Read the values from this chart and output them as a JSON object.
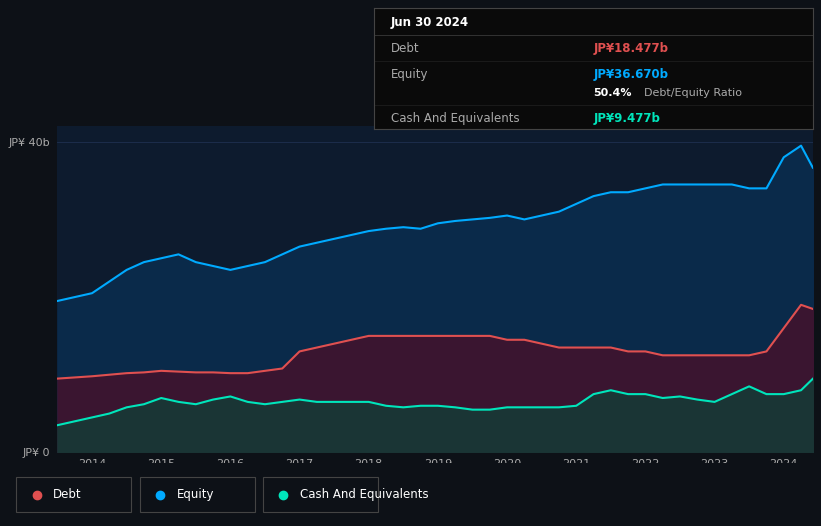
{
  "bg_color": "#0d1117",
  "plot_bg_color": "#0d1b2e",
  "grid_color": "#1e3050",
  "equity_color": "#00aaff",
  "debt_color": "#e05050",
  "cash_color": "#00e5bb",
  "equity_fill": "#0a2a4a",
  "debt_fill": "#3a1530",
  "cash_fill": "#1a3a3a",
  "years": [
    2013.5,
    2014.0,
    2014.25,
    2014.5,
    2014.75,
    2015.0,
    2015.25,
    2015.5,
    2015.75,
    2016.0,
    2016.25,
    2016.5,
    2016.75,
    2017.0,
    2017.25,
    2017.5,
    2017.75,
    2018.0,
    2018.25,
    2018.5,
    2018.75,
    2019.0,
    2019.25,
    2019.5,
    2019.75,
    2020.0,
    2020.25,
    2020.5,
    2020.75,
    2021.0,
    2021.25,
    2021.5,
    2021.75,
    2022.0,
    2022.25,
    2022.5,
    2022.75,
    2023.0,
    2023.25,
    2023.5,
    2023.75,
    2024.0,
    2024.25,
    2024.42
  ],
  "equity": [
    19.5,
    20.5,
    22.0,
    23.5,
    24.5,
    25.0,
    25.5,
    24.5,
    24.0,
    23.5,
    24.0,
    24.5,
    25.5,
    26.5,
    27.0,
    27.5,
    28.0,
    28.5,
    28.8,
    29.0,
    28.8,
    29.5,
    29.8,
    30.0,
    30.2,
    30.5,
    30.0,
    30.5,
    31.0,
    32.0,
    33.0,
    33.5,
    33.5,
    34.0,
    34.5,
    34.5,
    34.5,
    34.5,
    34.5,
    34.0,
    34.0,
    38.0,
    39.5,
    36.67
  ],
  "debt": [
    9.5,
    9.8,
    10.0,
    10.2,
    10.3,
    10.5,
    10.4,
    10.3,
    10.3,
    10.2,
    10.2,
    10.5,
    10.8,
    13.0,
    13.5,
    14.0,
    14.5,
    15.0,
    15.0,
    15.0,
    15.0,
    15.0,
    15.0,
    15.0,
    15.0,
    14.5,
    14.5,
    14.0,
    13.5,
    13.5,
    13.5,
    13.5,
    13.0,
    13.0,
    12.5,
    12.5,
    12.5,
    12.5,
    12.5,
    12.5,
    13.0,
    16.0,
    19.0,
    18.477
  ],
  "cash": [
    3.5,
    4.5,
    5.0,
    5.8,
    6.2,
    7.0,
    6.5,
    6.2,
    6.8,
    7.2,
    6.5,
    6.2,
    6.5,
    6.8,
    6.5,
    6.5,
    6.5,
    6.5,
    6.0,
    5.8,
    6.0,
    6.0,
    5.8,
    5.5,
    5.5,
    5.8,
    5.8,
    5.8,
    5.8,
    6.0,
    7.5,
    8.0,
    7.5,
    7.5,
    7.0,
    7.2,
    6.8,
    6.5,
    7.5,
    8.5,
    7.5,
    7.5,
    8.0,
    9.477
  ],
  "ylim": [
    0,
    42
  ],
  "ytick_positions": [
    0,
    40
  ],
  "ytick_labels": [
    "JP¥ 0",
    "JP¥ 40b"
  ],
  "xlabel_ticks": [
    2014,
    2015,
    2016,
    2017,
    2018,
    2019,
    2020,
    2021,
    2022,
    2023,
    2024
  ],
  "tooltip_title": "Jun 30 2024",
  "tooltip_debt_label": "Debt",
  "tooltip_debt_value": "JP¥18.477b",
  "tooltip_equity_label": "Equity",
  "tooltip_equity_value": "JP¥36.670b",
  "tooltip_ratio_bold": "50.4%",
  "tooltip_ratio_text": " Debt/Equity Ratio",
  "tooltip_cash_label": "Cash And Equivalents",
  "tooltip_cash_value": "JP¥9.477b",
  "legend_debt": "Debt",
  "legend_equity": "Equity",
  "legend_cash": "Cash And Equivalents"
}
